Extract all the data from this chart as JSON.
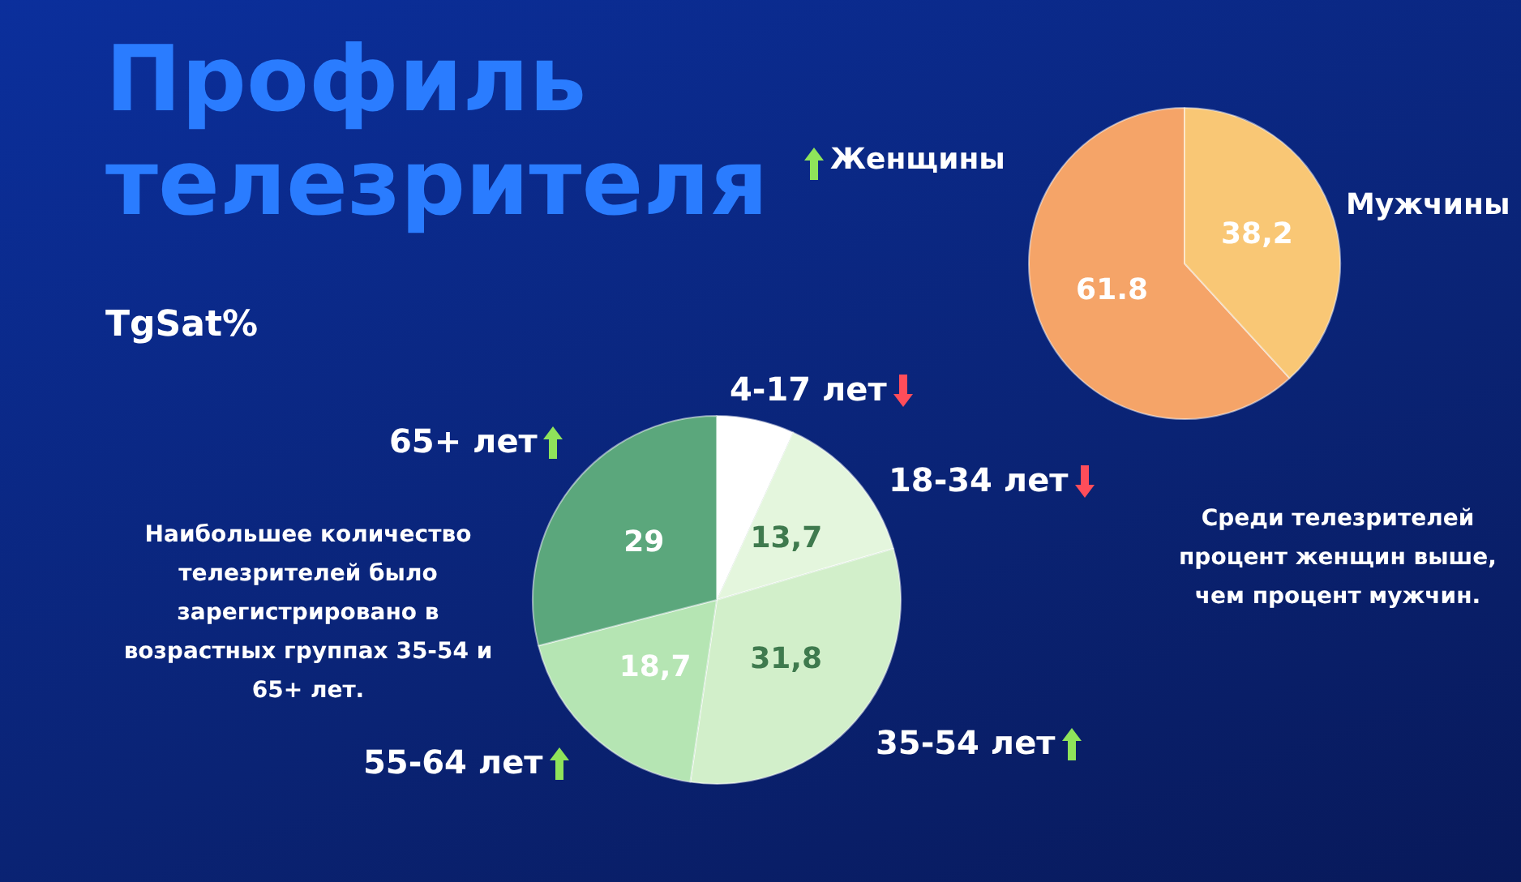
{
  "chart_data": [
    {
      "type": "pie",
      "title": "Профиль телезрителя",
      "subtitle": "TgSat%",
      "categories": [
        "4-17 лет",
        "18-34 лет",
        "35-54 лет",
        "55-64 лет",
        "65+ лет"
      ],
      "values": [
        6.8,
        13.7,
        31.8,
        18.7,
        29
      ],
      "colors": [
        "#ffffff",
        "#e4f6dd",
        "#d2efca",
        "#b5e5b3",
        "#5ba77c"
      ],
      "value_labels": [
        null,
        "13,7",
        "31,8",
        "18,7",
        "29"
      ],
      "annotations": [
        "Наибольшее количество телезрителей было зарегистрировано в возрастных группах 35-54 и 65+ лет."
      ]
    },
    {
      "type": "pie",
      "categories": [
        "Женщины",
        "Мужчины"
      ],
      "values": [
        61.8,
        38.2
      ],
      "colors": [
        "#f5a468",
        "#f9c775"
      ],
      "value_labels": [
        "61.8",
        "38,2"
      ],
      "annotations": [
        "Среди телезрителей процент женщин выше, чем процент мужчин."
      ]
    }
  ]
}
